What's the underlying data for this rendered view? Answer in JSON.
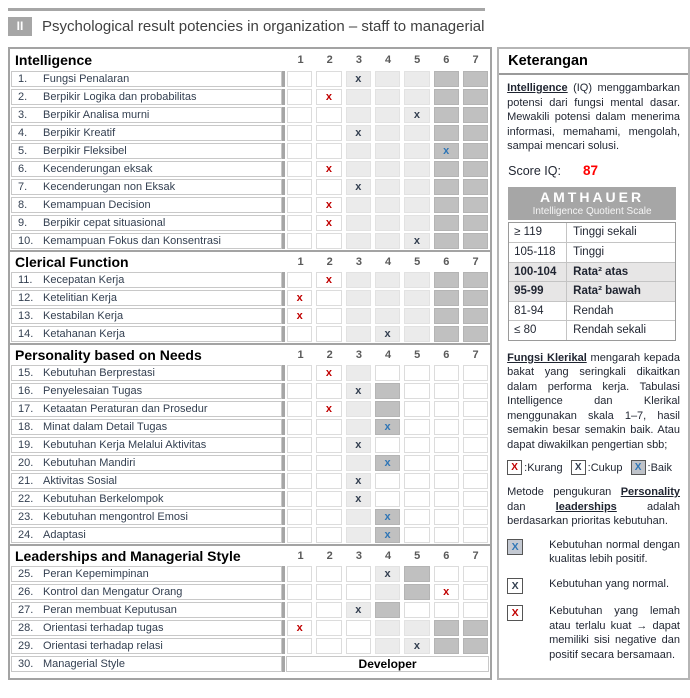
{
  "header": {
    "badge": "II",
    "title": "Psychological result potencies in organization – staff to managerial"
  },
  "columns": [
    "1",
    "2",
    "3",
    "4",
    "5",
    "6",
    "7"
  ],
  "mark_glyph": "x",
  "colors": {
    "x_red": "#c00000",
    "x_black": "#333f50",
    "x_blue": "#2e75b6",
    "score_red": "#ff0000",
    "band_gray": "#a6a6a6",
    "cell_light": "#ebebeb",
    "cell_dark": "#c0c0c0",
    "amthauer_highlight": "#e7e6e6"
  },
  "sections": [
    {
      "title": "Intelligence",
      "items": [
        {
          "num": "1.",
          "label": "Fungsi Penalaran",
          "cells": "wwllldd",
          "mark": {
            "col": 3,
            "type": "black"
          }
        },
        {
          "num": "2.",
          "label": "Berpikir Logika dan probabilitas",
          "cells": "wwllldd",
          "mark": {
            "col": 2,
            "type": "red"
          }
        },
        {
          "num": "3.",
          "label": "Berpikir Analisa murni",
          "cells": "wwllldd",
          "mark": {
            "col": 5,
            "type": "black"
          }
        },
        {
          "num": "4.",
          "label": "Berpikir Kreatif",
          "cells": "wwllldd",
          "mark": {
            "col": 3,
            "type": "black"
          }
        },
        {
          "num": "5.",
          "label": "Berpikir Fleksibel",
          "cells": "wwllldd",
          "mark": {
            "col": 6,
            "type": "blue"
          }
        },
        {
          "num": "6.",
          "label": "Kecenderungan eksak",
          "cells": "wwllldd",
          "mark": {
            "col": 2,
            "type": "red"
          }
        },
        {
          "num": "7.",
          "label": "Kecenderungan non Eksak",
          "cells": "wwllldd",
          "mark": {
            "col": 3,
            "type": "black"
          }
        },
        {
          "num": "8.",
          "label": "Kemampuan Decision",
          "cells": "wwllldd",
          "mark": {
            "col": 2,
            "type": "red"
          }
        },
        {
          "num": "9.",
          "label": "Berpikir cepat situasional",
          "cells": "wwllldd",
          "mark": {
            "col": 2,
            "type": "red"
          }
        },
        {
          "num": "10.",
          "label": "Kemampuan Fokus dan Konsentrasi",
          "cells": "wwllldd",
          "mark": {
            "col": 5,
            "type": "black"
          }
        }
      ]
    },
    {
      "title": "Clerical Function",
      "items": [
        {
          "num": "11.",
          "label": "Kecepatan Kerja",
          "cells": "wwllldd",
          "mark": {
            "col": 2,
            "type": "red"
          }
        },
        {
          "num": "12.",
          "label": "Ketelitian Kerja",
          "cells": "wwllldd",
          "mark": {
            "col": 1,
            "type": "red"
          }
        },
        {
          "num": "13.",
          "label": "Kestabilan Kerja",
          "cells": "wwllldd",
          "mark": {
            "col": 1,
            "type": "red"
          }
        },
        {
          "num": "14.",
          "label": "Ketahanan Kerja",
          "cells": "wwllldd",
          "mark": {
            "col": 4,
            "type": "black"
          }
        }
      ]
    },
    {
      "title": "Personality based on Needs",
      "items": [
        {
          "num": "15.",
          "label": "Kebutuhan Berprestasi",
          "cells": "wwlwwww",
          "mark": {
            "col": 2,
            "type": "red"
          }
        },
        {
          "num": "16.",
          "label": "Penyelesaian Tugas",
          "cells": "wwldwww",
          "mark": {
            "col": 3,
            "type": "black"
          }
        },
        {
          "num": "17.",
          "label": "Ketaatan Peraturan dan Prosedur",
          "cells": "wwldwww",
          "mark": {
            "col": 2,
            "type": "red"
          }
        },
        {
          "num": "18.",
          "label": "Minat dalam Detail Tugas",
          "cells": "wwldwww",
          "mark": {
            "col": 4,
            "type": "blue"
          }
        },
        {
          "num": "19.",
          "label": "Kebutuhan Kerja Melalui Aktivitas",
          "cells": "wwlwwww",
          "mark": {
            "col": 3,
            "type": "black"
          }
        },
        {
          "num": "20.",
          "label": "Kebutuhan Mandiri",
          "cells": "wwldwww",
          "mark": {
            "col": 4,
            "type": "blue"
          }
        },
        {
          "num": "21.",
          "label": "Aktivitas Sosial",
          "cells": "wwlwwww",
          "mark": {
            "col": 3,
            "type": "black"
          }
        },
        {
          "num": "22.",
          "label": "Kebutuhan Berkelompok",
          "cells": "wwlwwww",
          "mark": {
            "col": 3,
            "type": "black"
          }
        },
        {
          "num": "23.",
          "label": "Kebutuhan mengontrol Emosi",
          "cells": "wwldwww",
          "mark": {
            "col": 4,
            "type": "blue"
          }
        },
        {
          "num": "24.",
          "label": "Adaptasi",
          "cells": "wwldwww",
          "mark": {
            "col": 4,
            "type": "blue"
          }
        }
      ]
    },
    {
      "title": "Leaderships and Managerial Style",
      "items": [
        {
          "num": "25.",
          "label": "Peran Kepemimpinan",
          "cells": "wwwldww",
          "mark": {
            "col": 4,
            "type": "black"
          }
        },
        {
          "num": "26.",
          "label": "Kontrol dan Mengatur Orang",
          "cells": "wwwldww",
          "mark": {
            "col": 6,
            "type": "red"
          }
        },
        {
          "num": "27.",
          "label": "Peran membuat Keputusan",
          "cells": "wwldwww",
          "mark": {
            "col": 3,
            "type": "black"
          }
        },
        {
          "num": "28.",
          "label": "Orientasi terhadap tugas",
          "cells": "wwwlldd",
          "mark": {
            "col": 1,
            "type": "red"
          }
        },
        {
          "num": "29.",
          "label": "Orientasi terhadap relasi",
          "cells": "wwwlldd",
          "mark": {
            "col": 5,
            "type": "black"
          }
        },
        {
          "num": "30.",
          "label": "Managerial Style",
          "merged": "Developer"
        }
      ]
    }
  ],
  "sidebar": {
    "title": "Keterangan",
    "para1": {
      "bold": "Intelligence",
      "rest": " (IQ) menggambarkan potensi dari fungsi mental dasar. Mewakili potensi dalam menerima informasi, memahami, mengolah, sampai mencari solusi."
    },
    "score": {
      "label": "Score IQ:",
      "value": "87"
    },
    "amthauer": {
      "title": "AMTHAUER",
      "subtitle": "Intelligence Quotient Scale",
      "rows": [
        {
          "range": "≥ 119",
          "label": "Tinggi sekali",
          "highlight": false
        },
        {
          "range": "105-118",
          "label": "Tinggi",
          "highlight": false
        },
        {
          "range": "100-104",
          "label": "Rata² atas",
          "highlight": true
        },
        {
          "range": "95-99",
          "label": "Rata² bawah",
          "highlight": true
        },
        {
          "range": "81-94",
          "label": "Rendah",
          "highlight": false
        },
        {
          "range": "≤ 80",
          "label": "Rendah sekali",
          "highlight": false
        }
      ]
    },
    "para2": {
      "bold": "Fungsi Klerikal",
      "rest": " mengarah kepada bakat yang seringkali dikaitkan dalam performa kerja. Tabulasi Intelligence dan Klerikal menggunakan skala 1–7, hasil semakin besar semakin baik. Atau dapat diwakilkan pengertian sbb;"
    },
    "inline_legend": [
      {
        "glyph": "X",
        "type": "red",
        "box": "white",
        "label": ":Kurang"
      },
      {
        "glyph": "X",
        "type": "black",
        "box": "white",
        "label": ":Cukup"
      },
      {
        "glyph": "X",
        "type": "blue",
        "box": "gray",
        "label": ":Baik"
      }
    ],
    "para3": {
      "parts": [
        {
          "t": "Metode pengukuran "
        },
        {
          "t": "Personality",
          "bu": true
        },
        {
          "t": " dan "
        },
        {
          "t": "leaderships",
          "bu": true
        },
        {
          "t": " adalah berdasarkan prioritas kebutuhan."
        }
      ]
    },
    "legend_blocks": [
      {
        "glyph": "X",
        "type": "blue",
        "box": "gray",
        "text": "Kebutuhan normal dengan kualitas lebih positif."
      },
      {
        "glyph": "X",
        "type": "black",
        "box": "white",
        "text": "Kebutuhan yang normal."
      },
      {
        "glyph": "X",
        "type": "red",
        "box": "white",
        "text": "Kebutuhan yang lemah atau terlalu kuat → dapat memiliki sisi negative dan positif secara bersamaan."
      }
    ]
  }
}
